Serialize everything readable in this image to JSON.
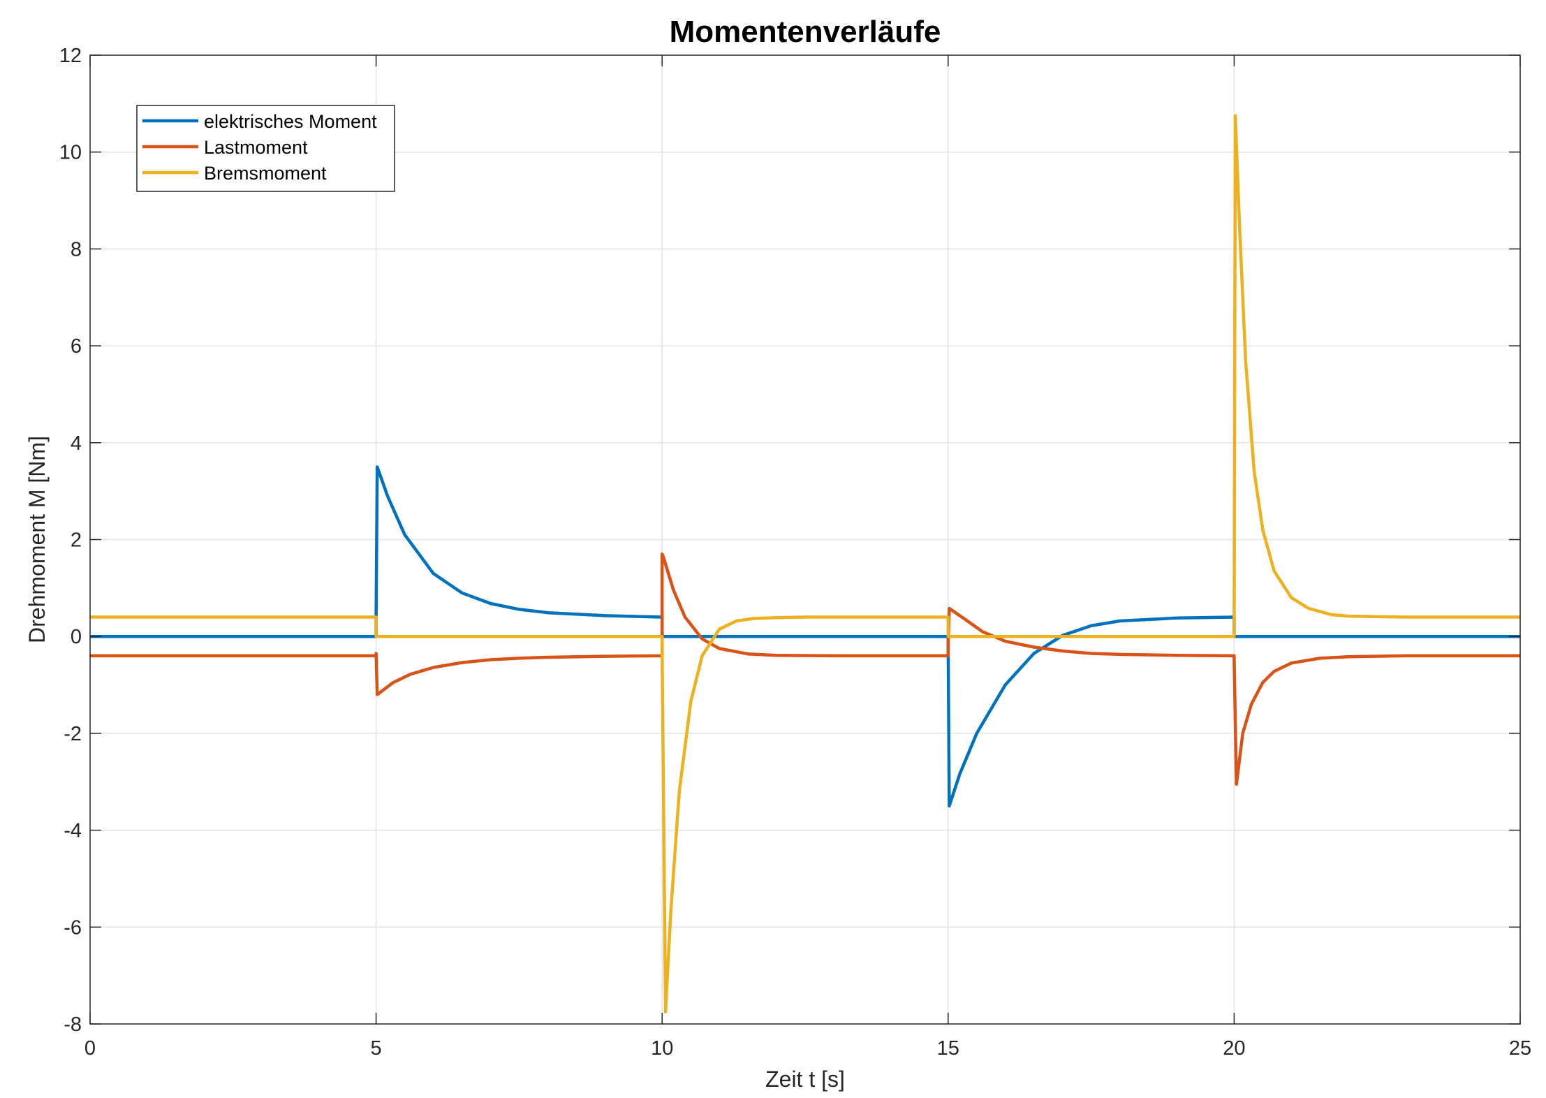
{
  "chart_data": {
    "type": "line",
    "title": "Momentenverläufe",
    "xlabel": "Zeit t [s]",
    "ylabel": "Drehmoment M [Nm]",
    "xlim": [
      0,
      25
    ],
    "ylim": [
      -8,
      12
    ],
    "xticks": [
      0,
      5,
      10,
      15,
      20,
      25
    ],
    "xtick_labels": [
      "0",
      "5",
      "10",
      "15",
      "20",
      "25"
    ],
    "yticks": [
      -8,
      -6,
      -4,
      -2,
      0,
      2,
      4,
      6,
      8,
      10,
      12
    ],
    "ytick_labels": [
      "-8",
      "-6",
      "-4",
      "-2",
      "0",
      "2",
      "4",
      "6",
      "8",
      "10",
      "12"
    ],
    "grid": true,
    "legend": {
      "position": "top-left",
      "entries": [
        "elektrisches Moment",
        "Lastmoment",
        "Bremsmoment"
      ]
    },
    "series": [
      {
        "name": "elektrisches Moment",
        "color": "#0072BD",
        "x": [
          0,
          5,
          5.0,
          5.02,
          5.2,
          5.5,
          6.0,
          6.5,
          7.0,
          7.5,
          8.0,
          9.0,
          10.0,
          10.0,
          15.0,
          15.0,
          15.02,
          15.2,
          15.5,
          16.0,
          16.5,
          17.0,
          17.5,
          18.0,
          19.0,
          20.0,
          20.0,
          25.0
        ],
        "y": [
          0,
          0,
          0.4,
          3.5,
          2.9,
          2.1,
          1.3,
          0.9,
          0.68,
          0.56,
          0.49,
          0.43,
          0.4,
          0,
          0,
          -0.05,
          -3.5,
          -2.85,
          -2.0,
          -1.0,
          -0.35,
          0.02,
          0.22,
          0.32,
          0.38,
          0.4,
          0,
          0
        ]
      },
      {
        "name": "Lastmoment",
        "color": "#D95319",
        "x": [
          0,
          5,
          5.0,
          5.02,
          5.3,
          5.6,
          6.0,
          6.5,
          7.0,
          7.5,
          8.0,
          9.0,
          10.0,
          10.0,
          10.02,
          10.2,
          10.4,
          10.7,
          11.0,
          11.5,
          12.0,
          13.0,
          15.0,
          15.0,
          15.02,
          15.3,
          15.6,
          16.0,
          16.5,
          17.0,
          17.5,
          18.0,
          19.0,
          20.0,
          20.0,
          20.04,
          20.15,
          20.3,
          20.5,
          20.7,
          21.0,
          21.5,
          22.0,
          23.0,
          25.0
        ],
        "y": [
          -0.4,
          -0.4,
          -0.35,
          -1.2,
          -0.95,
          -0.78,
          -0.64,
          -0.54,
          -0.48,
          -0.45,
          -0.43,
          -0.41,
          -0.4,
          1.7,
          1.65,
          0.95,
          0.4,
          -0.05,
          -0.25,
          -0.36,
          -0.39,
          -0.4,
          -0.4,
          -0.2,
          0.58,
          0.35,
          0.1,
          -0.1,
          -0.22,
          -0.3,
          -0.35,
          -0.37,
          -0.39,
          -0.4,
          -0.5,
          -3.05,
          -2.0,
          -1.4,
          -0.95,
          -0.72,
          -0.55,
          -0.45,
          -0.42,
          -0.4,
          -0.4
        ]
      },
      {
        "name": "Bremsmoment",
        "color": "#EDB120",
        "x": [
          0,
          5,
          5.0,
          10.0,
          10.0,
          10.06,
          10.15,
          10.3,
          10.5,
          10.7,
          11.0,
          11.3,
          11.6,
          12.0,
          12.5,
          13.0,
          15.0,
          15.0,
          20.0,
          20.0,
          20.02,
          20.1,
          20.2,
          20.35,
          20.5,
          20.7,
          21.0,
          21.3,
          21.7,
          22.0,
          23.0,
          25.0
        ],
        "y": [
          0.4,
          0.4,
          0,
          0,
          -0.3,
          -7.75,
          -5.7,
          -3.2,
          -1.35,
          -0.4,
          0.15,
          0.32,
          0.37,
          0.39,
          0.4,
          0.4,
          0.4,
          0,
          0,
          0.2,
          10.75,
          8.3,
          5.7,
          3.4,
          2.2,
          1.35,
          0.8,
          0.58,
          0.45,
          0.42,
          0.4,
          0.4
        ]
      }
    ]
  }
}
